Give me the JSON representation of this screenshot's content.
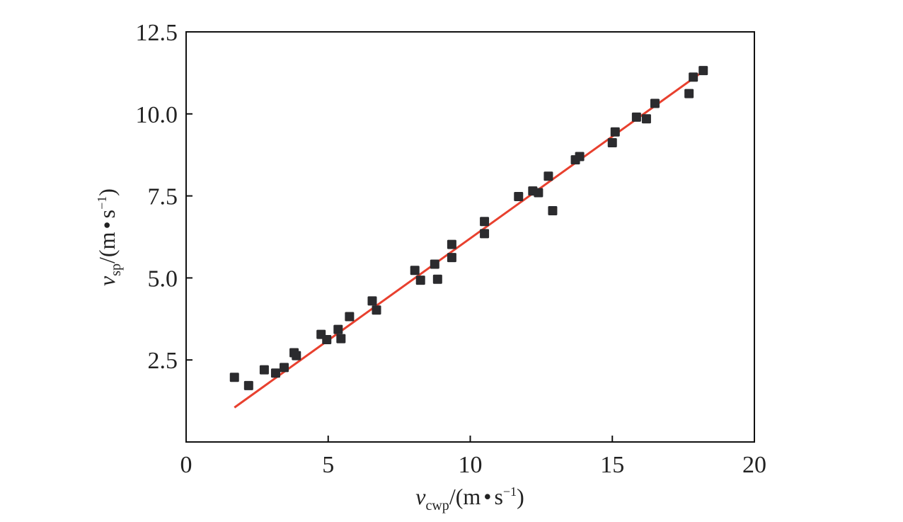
{
  "chart_data": {
    "type": "scatter",
    "xlabel": {
      "var": "v",
      "sub": "cwp",
      "unit_pre": "/(m",
      "dot": "•",
      "unit_s": "s",
      "sup": "−1",
      "close": ")"
    },
    "ylabel": {
      "var": "v",
      "sub": "sp",
      "unit_pre": "/(m",
      "dot": "•",
      "unit_s": "s",
      "sup": "−1",
      "close": ")"
    },
    "xlim": [
      0,
      20
    ],
    "ylim": [
      0,
      12.5
    ],
    "x_ticks": [
      {
        "value": 0,
        "label": "0"
      },
      {
        "value": 5,
        "label": "5"
      },
      {
        "value": 10,
        "label": "10"
      },
      {
        "value": 15,
        "label": "15"
      },
      {
        "value": 20,
        "label": "20"
      }
    ],
    "y_ticks": [
      {
        "value": 2.5,
        "label": "2.5"
      },
      {
        "value": 5.0,
        "label": "5.0"
      },
      {
        "value": 7.5,
        "label": "7.5"
      },
      {
        "value": 10.0,
        "label": "10.0"
      },
      {
        "value": 12.5,
        "label": "12.5"
      }
    ],
    "grid": false,
    "legend": "none",
    "colors": {
      "points": "#2b2b2e",
      "fit_line": "#e8402e",
      "axes": "#111111"
    },
    "points": [
      {
        "x": 1.7,
        "y": 1.97
      },
      {
        "x": 2.2,
        "y": 1.72
      },
      {
        "x": 2.75,
        "y": 2.2
      },
      {
        "x": 3.15,
        "y": 2.1
      },
      {
        "x": 3.45,
        "y": 2.27
      },
      {
        "x": 3.8,
        "y": 2.72
      },
      {
        "x": 3.88,
        "y": 2.63
      },
      {
        "x": 4.75,
        "y": 3.28
      },
      {
        "x": 4.95,
        "y": 3.12
      },
      {
        "x": 5.35,
        "y": 3.43
      },
      {
        "x": 5.45,
        "y": 3.15
      },
      {
        "x": 5.75,
        "y": 3.82
      },
      {
        "x": 6.55,
        "y": 4.3
      },
      {
        "x": 6.7,
        "y": 4.02
      },
      {
        "x": 8.05,
        "y": 5.23
      },
      {
        "x": 8.25,
        "y": 4.93
      },
      {
        "x": 8.75,
        "y": 5.42
      },
      {
        "x": 8.85,
        "y": 4.96
      },
      {
        "x": 9.35,
        "y": 6.02
      },
      {
        "x": 9.35,
        "y": 5.62
      },
      {
        "x": 10.5,
        "y": 6.72
      },
      {
        "x": 10.5,
        "y": 6.35
      },
      {
        "x": 11.7,
        "y": 7.48
      },
      {
        "x": 12.2,
        "y": 7.65
      },
      {
        "x": 12.4,
        "y": 7.6
      },
      {
        "x": 12.75,
        "y": 8.1
      },
      {
        "x": 12.9,
        "y": 7.05
      },
      {
        "x": 13.7,
        "y": 8.6
      },
      {
        "x": 13.85,
        "y": 8.7
      },
      {
        "x": 15.0,
        "y": 9.12
      },
      {
        "x": 15.1,
        "y": 9.45
      },
      {
        "x": 15.85,
        "y": 9.9
      },
      {
        "x": 16.2,
        "y": 9.85
      },
      {
        "x": 16.5,
        "y": 10.32
      },
      {
        "x": 17.7,
        "y": 10.62
      },
      {
        "x": 17.85,
        "y": 11.12
      },
      {
        "x": 18.2,
        "y": 11.32
      }
    ],
    "fit_line": {
      "x": [
        1.7,
        18.2
      ],
      "y": [
        1.05,
        11.3
      ]
    }
  }
}
